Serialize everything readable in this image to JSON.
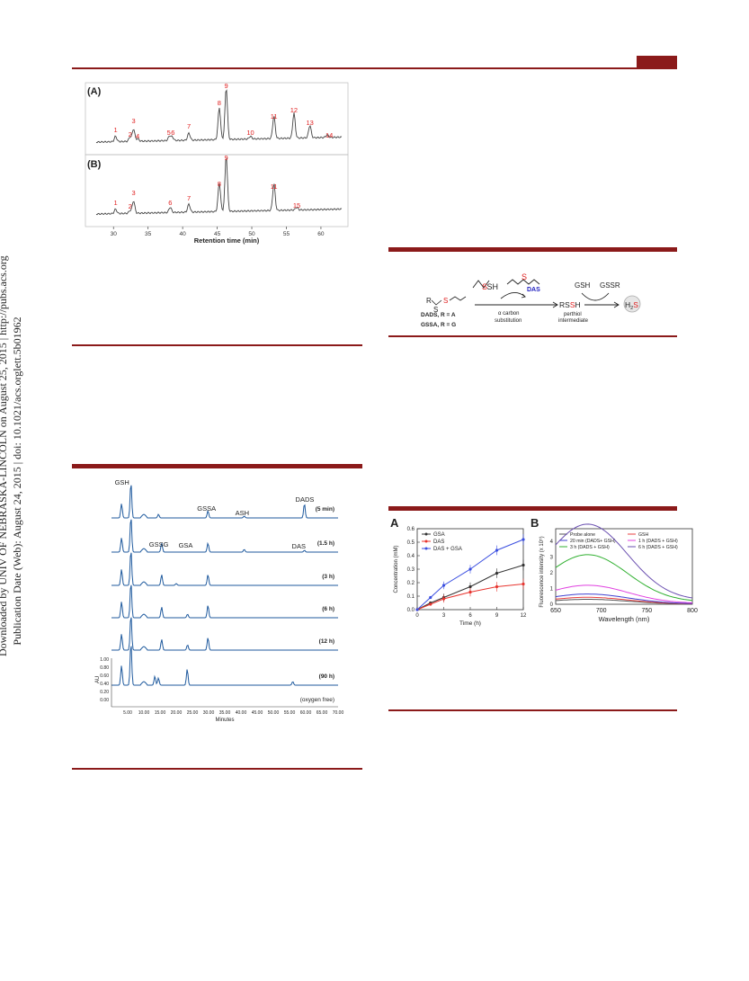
{
  "sidebar": {
    "line1": "Downloaded by UNIV OF NEBRASKA-LINCOLN on August 25, 2015 | http://pubs.acs.org",
    "line2": "Publication Date (Web): August 24, 2015 | doi: 10.1021/acs.orglett.5b01962"
  },
  "fig1": {
    "panelA": "(A)",
    "panelB": "(B)",
    "xlabel": "Retention time (min)",
    "xticks": [
      "30",
      "35",
      "40",
      "45",
      "50",
      "55",
      "60"
    ],
    "peaksA": [
      "1",
      "2",
      "3",
      "4",
      "5",
      "6",
      "7",
      "8",
      "9",
      "10",
      "11",
      "12",
      "13",
      "14"
    ],
    "peaksB": [
      "1",
      "2",
      "3",
      "6",
      "7",
      "8",
      "9",
      "11",
      "15"
    ]
  },
  "scheme": {
    "sh": "SH",
    "das": "DAS",
    "gsh": "GSH",
    "gssr": "GSSR",
    "r": "R",
    "s": "S",
    "dads_line": "DADS, R = A",
    "gssa_line": "GSSA, R = G",
    "step": "α carbon",
    "step2": "substitution",
    "rssh": "RSSH",
    "perthiol": "perthiol",
    "intermediate": "intermediate",
    "h2s": "H2S"
  },
  "fig2": {
    "labels": [
      "GSH",
      "GSSA",
      "ASH",
      "DADS",
      "GSSG",
      "GSA",
      "DAS"
    ],
    "times": [
      "(5 min)",
      "(1.5 h)",
      "(3 h)",
      "(6 h)",
      "(12 h)",
      "(90 h)",
      "(oxygen free)"
    ],
    "au": "AU",
    "yticks": [
      "1.00",
      "0.80",
      "0.60",
      "0.40",
      "0.20",
      "0.00"
    ],
    "xticks": [
      "5.00",
      "10.00",
      "15.00",
      "20.00",
      "25.00",
      "30.00",
      "35.00",
      "40.00",
      "45.00",
      "50.00",
      "55.00",
      "60.00",
      "65.00",
      "70.00"
    ],
    "xlabel": "Minutes"
  },
  "chart_data": [
    {
      "type": "line",
      "panel": "A",
      "x": [
        0,
        1.5,
        3,
        6,
        9,
        12
      ],
      "xlabel": "Time (h)",
      "ylabel": "Concentration (mM)",
      "xlim": [
        0,
        12
      ],
      "ylim": [
        0,
        0.6
      ],
      "xticks": [
        "0",
        "3",
        "6",
        "9",
        "12"
      ],
      "yticks": [
        "0.0",
        "0.1",
        "0.2",
        "0.3",
        "0.4",
        "0.5",
        "0.6"
      ],
      "series": [
        {
          "name": "GSA",
          "color": "#333333",
          "values": [
            0,
            0.05,
            0.09,
            0.17,
            0.27,
            0.33
          ]
        },
        {
          "name": "DAS",
          "color": "#e8352f",
          "values": [
            0,
            0.04,
            0.08,
            0.13,
            0.17,
            0.19
          ]
        },
        {
          "name": "DAS + GSA",
          "color": "#3b4fe0",
          "values": [
            0,
            0.09,
            0.18,
            0.3,
            0.44,
            0.52
          ]
        }
      ]
    },
    {
      "type": "line",
      "panel": "B",
      "xlabel": "Wavelength (nm)",
      "ylabel": "Fluorescence intensity (x 10⁵)",
      "xlim": [
        650,
        800
      ],
      "ylim": [
        0,
        4.8
      ],
      "xticks": [
        "650",
        "700",
        "750",
        "800"
      ],
      "yticks": [
        "0",
        "1",
        "2",
        "3",
        "4"
      ],
      "series": [
        {
          "name": "Probe alone",
          "color": "#555555",
          "peak": 0.3
        },
        {
          "name": "GSH",
          "color": "#e84040",
          "peak": 0.42
        },
        {
          "name": "20 min (DADS+ GSH)",
          "color": "#4040d0",
          "peak": 0.62
        },
        {
          "name": "1 h (DADS + GSH)",
          "color": "#e040e0",
          "peak": 1.15
        },
        {
          "name": "3 h (DADS + GSH)",
          "color": "#30b030",
          "peak": 3.0
        },
        {
          "name": "6 h (DADS + GSH)",
          "color": "#6a4fb0",
          "peak": 4.85
        }
      ]
    }
  ]
}
